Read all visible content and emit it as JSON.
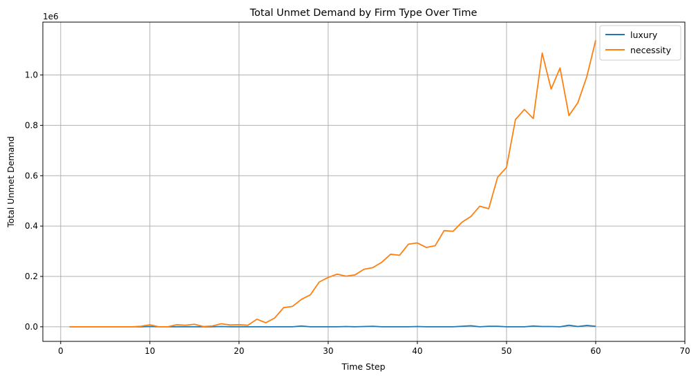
{
  "chart_data": {
    "type": "line",
    "title": "Total Unmet Demand by Firm Type Over Time",
    "xlabel": "Time Step",
    "ylabel": "Total Unmet Demand",
    "y_offset_label": "1e6",
    "xlim": [
      -2,
      70
    ],
    "ylim": [
      -0.058,
      1.21
    ],
    "xticks": [
      "0",
      "10",
      "20",
      "30",
      "40",
      "50",
      "60",
      "70"
    ],
    "yticks": [
      "0.0",
      "0.2",
      "0.4",
      "0.6",
      "0.8",
      "1.0"
    ],
    "grid": true,
    "legend_position": "top-right",
    "x": [
      1,
      2,
      3,
      4,
      5,
      6,
      7,
      8,
      9,
      10,
      11,
      12,
      13,
      14,
      15,
      16,
      17,
      18,
      19,
      20,
      21,
      22,
      23,
      24,
      25,
      26,
      27,
      28,
      29,
      30,
      31,
      32,
      33,
      34,
      35,
      36,
      37,
      38,
      39,
      40,
      41,
      42,
      43,
      44,
      45,
      46,
      47,
      48,
      49,
      50,
      51,
      52,
      53,
      54,
      55,
      56,
      57,
      58,
      59,
      60
    ],
    "series": [
      {
        "name": "luxury",
        "color": "#1f77b4",
        "values": [
          0,
          0,
          0,
          0,
          0,
          0,
          0,
          0,
          0,
          0.001,
          0,
          0,
          0,
          0,
          0,
          0,
          0,
          0.001,
          0,
          0,
          0,
          0,
          0,
          0,
          0,
          0,
          0.003,
          0,
          0,
          0,
          0,
          0.001,
          0,
          0.001,
          0.002,
          0,
          0,
          0,
          0,
          0.001,
          0,
          0,
          0,
          0,
          0.002,
          0.004,
          0,
          0.002,
          0.002,
          0,
          0,
          0,
          0.003,
          0.001,
          0.001,
          0,
          0.006,
          0.001,
          0.005,
          0.002
        ]
      },
      {
        "name": "necessity",
        "color": "#ff7f0e",
        "values": [
          0,
          0,
          0,
          0,
          0,
          0,
          0,
          0,
          0.002,
          0.008,
          0,
          0,
          0.008,
          0.006,
          0.01,
          0.001,
          0.003,
          0.012,
          0.007,
          0.008,
          0.006,
          0.03,
          0.016,
          0.035,
          0.076,
          0.081,
          0.109,
          0.127,
          0.178,
          0.196,
          0.209,
          0.201,
          0.206,
          0.228,
          0.235,
          0.256,
          0.288,
          0.284,
          0.328,
          0.333,
          0.315,
          0.322,
          0.382,
          0.379,
          0.415,
          0.438,
          0.479,
          0.469,
          0.594,
          0.633,
          0.823,
          0.863,
          0.827,
          1.087,
          0.944,
          1.028,
          0.839,
          0.89,
          0.993,
          1.138
        ]
      }
    ]
  }
}
